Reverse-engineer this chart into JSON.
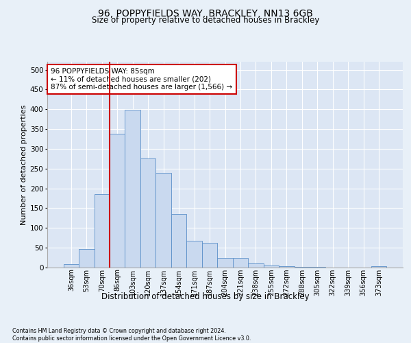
{
  "title_line1": "96, POPPYFIELDS WAY, BRACKLEY, NN13 6GB",
  "title_line2": "Size of property relative to detached houses in Brackley",
  "xlabel": "Distribution of detached houses by size in Brackley",
  "ylabel": "Number of detached properties",
  "footnote": "Contains HM Land Registry data © Crown copyright and database right 2024.\nContains public sector information licensed under the Open Government Licence v3.0.",
  "bar_labels": [
    "36sqm",
    "53sqm",
    "70sqm",
    "86sqm",
    "103sqm",
    "120sqm",
    "137sqm",
    "154sqm",
    "171sqm",
    "187sqm",
    "204sqm",
    "221sqm",
    "238sqm",
    "255sqm",
    "272sqm",
    "288sqm",
    "305sqm",
    "322sqm",
    "339sqm",
    "356sqm",
    "373sqm"
  ],
  "bar_heights": [
    8,
    46,
    185,
    338,
    398,
    275,
    240,
    135,
    68,
    62,
    25,
    25,
    10,
    5,
    3,
    2,
    1,
    0,
    0,
    0,
    4
  ],
  "bar_color": "#c9d9ef",
  "bar_edge_color": "#5b8fc9",
  "vline_index": 3,
  "vline_color": "#cc0000",
  "ylim": [
    0,
    520
  ],
  "yticks": [
    0,
    50,
    100,
    150,
    200,
    250,
    300,
    350,
    400,
    450,
    500
  ],
  "annotation_text": "96 POPPYFIELDS WAY: 85sqm\n← 11% of detached houses are smaller (202)\n87% of semi-detached houses are larger (1,566) →",
  "annotation_box_facecolor": "#ffffff",
  "annotation_box_edgecolor": "#cc0000",
  "fig_facecolor": "#e8f0f8",
  "plot_facecolor": "#dce6f4",
  "title1_fontsize": 10,
  "title2_fontsize": 8.5,
  "ylabel_fontsize": 8,
  "xlabel_fontsize": 8.5,
  "tick_fontsize": 7,
  "annot_fontsize": 7.5,
  "footnote_fontsize": 5.8
}
